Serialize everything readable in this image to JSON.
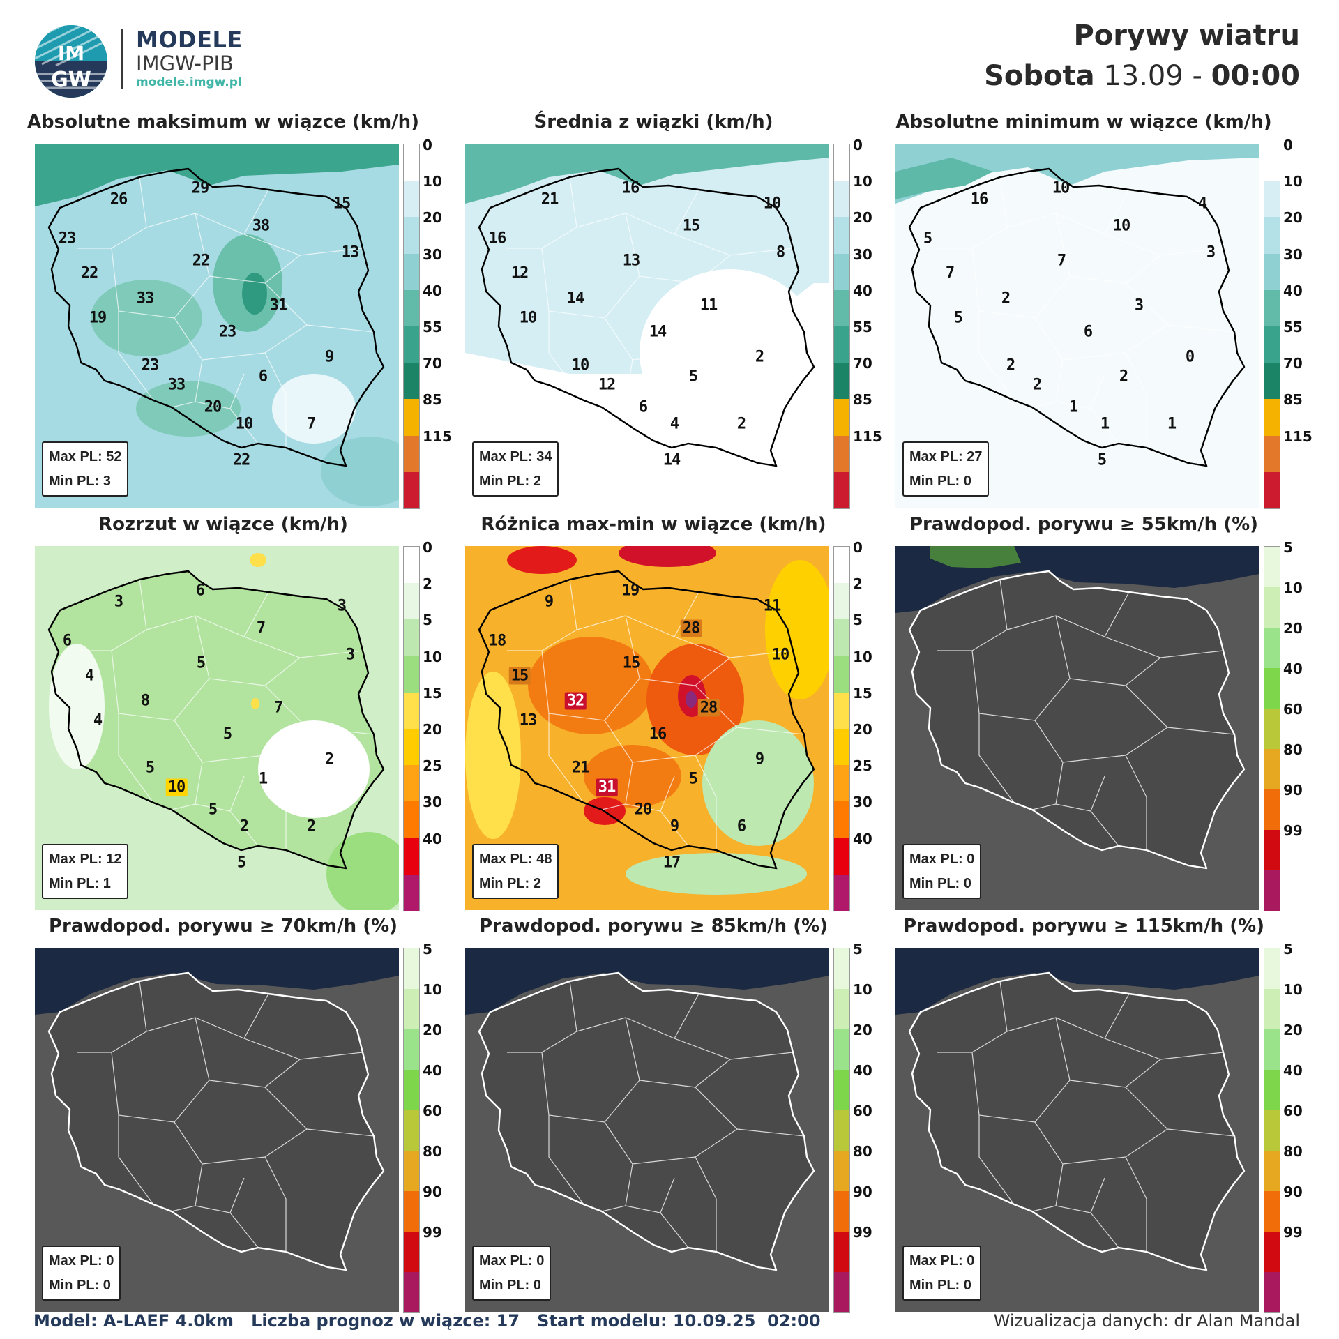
{
  "header": {
    "brand_name": "MODELE",
    "brand_org": "IMGW-PIB",
    "brand_url": "modele.imgw.pl",
    "logo_text_top": "IM",
    "logo_text_bottom": "GW",
    "title": "Porywy wiatru",
    "date_day": "Sobota",
    "date_date": " 13.09 - ",
    "date_time": "00:00"
  },
  "colors": {
    "green_scale": [
      "#ffffff",
      "#dff3df",
      "#b8e6a8",
      "#9ad980",
      "#78cc55",
      "#c7d35a",
      "#f2c13b",
      "#f29a1b",
      "#e75c15",
      "#c21230",
      "#a5175e"
    ]
  },
  "panels": [
    {
      "title": "Absolutne maksimum w wiązce (km/h)",
      "type": "wind",
      "bg": "#a7dbe3",
      "max": "Max PL: 52",
      "min": "Min PL: 3",
      "scale": [
        "0",
        "10",
        "20",
        "30",
        "40",
        "55",
        "70",
        "85",
        "115"
      ],
      "labels": [
        {
          "t": "26"
        },
        {
          "t": "29"
        },
        {
          "t": "15"
        },
        {
          "t": "23"
        },
        {
          "t": "38"
        },
        {
          "t": "13"
        },
        {
          "t": "22"
        },
        {
          "t": "22"
        },
        {
          "t": "33"
        },
        {
          "t": "31"
        },
        {
          "t": "19"
        },
        {
          "t": "23"
        },
        {
          "t": "9"
        },
        {
          "t": "23"
        },
        {
          "t": "6"
        },
        {
          "t": "33"
        },
        {
          "t": "20"
        },
        {
          "t": "10"
        },
        {
          "t": "7"
        },
        {
          "t": "22"
        }
      ]
    },
    {
      "title": "Średnia z wiązki (km/h)",
      "type": "wind",
      "bg": "#d4eef3",
      "max": "Max PL: 34",
      "min": "Min PL: 2",
      "scale": [
        "0",
        "10",
        "20",
        "30",
        "40",
        "55",
        "70",
        "85",
        "115"
      ],
      "labels": [
        {
          "t": "21"
        },
        {
          "t": "16"
        },
        {
          "t": "10"
        },
        {
          "t": "16"
        },
        {
          "t": "15"
        },
        {
          "t": "8"
        },
        {
          "t": "12"
        },
        {
          "t": "13"
        },
        {
          "t": "14"
        },
        {
          "t": "11"
        },
        {
          "t": "10"
        },
        {
          "t": "14"
        },
        {
          "t": "2"
        },
        {
          "t": "10"
        },
        {
          "t": "5"
        },
        {
          "t": "12"
        },
        {
          "t": "6"
        },
        {
          "t": "4"
        },
        {
          "t": "2"
        },
        {
          "t": "14"
        }
      ]
    },
    {
      "title": "Absolutne minimum w wiązce (km/h)",
      "type": "wind",
      "bg": "#f5fbfc",
      "max": "Max PL: 27",
      "min": "Min PL: 0",
      "scale": [
        "0",
        "10",
        "20",
        "30",
        "40",
        "55",
        "70",
        "85",
        "115"
      ],
      "labels": [
        {
          "t": "16"
        },
        {
          "t": "10"
        },
        {
          "t": "4"
        },
        {
          "t": "5"
        },
        {
          "t": "10"
        },
        {
          "t": "3"
        },
        {
          "t": "7"
        },
        {
          "t": "7"
        },
        {
          "t": "2"
        },
        {
          "t": "3"
        },
        {
          "t": "5"
        },
        {
          "t": "6"
        },
        {
          "t": "0"
        },
        {
          "t": "2"
        },
        {
          "t": "2"
        },
        {
          "t": "2"
        },
        {
          "t": "1"
        },
        {
          "t": "1"
        },
        {
          "t": "1"
        },
        {
          "t": "5"
        }
      ]
    },
    {
      "title": "Rozrzut w wiązce (km/h)",
      "type": "spread",
      "bg": "#e3f5df",
      "max": "Max PL: 12",
      "min": "Min PL: 1",
      "scale": [
        "0",
        "2",
        "5",
        "10",
        "15",
        "20",
        "25",
        "30",
        "40"
      ],
      "labels": [
        {
          "t": "3"
        },
        {
          "t": "6"
        },
        {
          "t": "3"
        },
        {
          "t": "6"
        },
        {
          "t": "7"
        },
        {
          "t": "3"
        },
        {
          "t": "4"
        },
        {
          "t": "5"
        },
        {
          "t": "8"
        },
        {
          "t": "7"
        },
        {
          "t": "4"
        },
        {
          "t": "5"
        },
        {
          "t": "2"
        },
        {
          "t": "5"
        },
        {
          "t": "1"
        },
        {
          "t": "10"
        },
        {
          "t": "5"
        },
        {
          "t": "2"
        },
        {
          "t": "2"
        },
        {
          "t": "5"
        }
      ]
    },
    {
      "title": "Różnica max-min w wiązce (km/h)",
      "type": "diff",
      "bg": "#f7b12b",
      "max": "Max PL: 48",
      "min": "Min PL: 2",
      "scale": [
        "0",
        "2",
        "5",
        "10",
        "15",
        "20",
        "25",
        "30",
        "40"
      ],
      "labels": [
        {
          "t": "9"
        },
        {
          "t": "19"
        },
        {
          "t": "11"
        },
        {
          "t": "18"
        },
        {
          "t": "28"
        },
        {
          "t": "10"
        },
        {
          "t": "15"
        },
        {
          "t": "15"
        },
        {
          "t": "32"
        },
        {
          "t": "28"
        },
        {
          "t": "13"
        },
        {
          "t": "16"
        },
        {
          "t": "9"
        },
        {
          "t": "21"
        },
        {
          "t": "5"
        },
        {
          "t": "31"
        },
        {
          "t": "20"
        },
        {
          "t": "9"
        },
        {
          "t": "6"
        },
        {
          "t": "17"
        }
      ]
    },
    {
      "title": "Prawdopod. porywu ≥ 55km/h (%)",
      "type": "prob",
      "bg": "#585858",
      "max": "Max PL: 0",
      "min": "Min PL: 0",
      "scale": [
        "5",
        "10",
        "20",
        "40",
        "60",
        "80",
        "90",
        "99"
      ],
      "labels": []
    },
    {
      "title": "Prawdopod. porywu ≥ 70km/h (%)",
      "type": "prob",
      "bg": "#585858",
      "max": "Max PL: 0",
      "min": "Min PL: 0",
      "scale": [
        "5",
        "10",
        "20",
        "40",
        "60",
        "80",
        "90",
        "99"
      ],
      "labels": []
    },
    {
      "title": "Prawdopod. porywu ≥ 85km/h (%)",
      "type": "prob",
      "bg": "#585858",
      "max": "Max PL: 0",
      "min": "Min PL: 0",
      "scale": [
        "5",
        "10",
        "20",
        "40",
        "60",
        "80",
        "90",
        "99"
      ],
      "labels": []
    },
    {
      "title": "Prawdopod. porywu ≥ 115km/h (%)",
      "type": "prob",
      "bg": "#585858",
      "max": "Max PL: 0",
      "min": "Min PL: 0",
      "scale": [
        "5",
        "10",
        "20",
        "40",
        "60",
        "80",
        "90",
        "99"
      ],
      "labels": []
    }
  ],
  "footer": {
    "left": "Model: A-LAEF 4.0km   Liczba prognoz w wiązce: 17   Start modelu: 10.09.25  02:00",
    "right": "Wizualizacja danych: dr Alan Mandal"
  }
}
